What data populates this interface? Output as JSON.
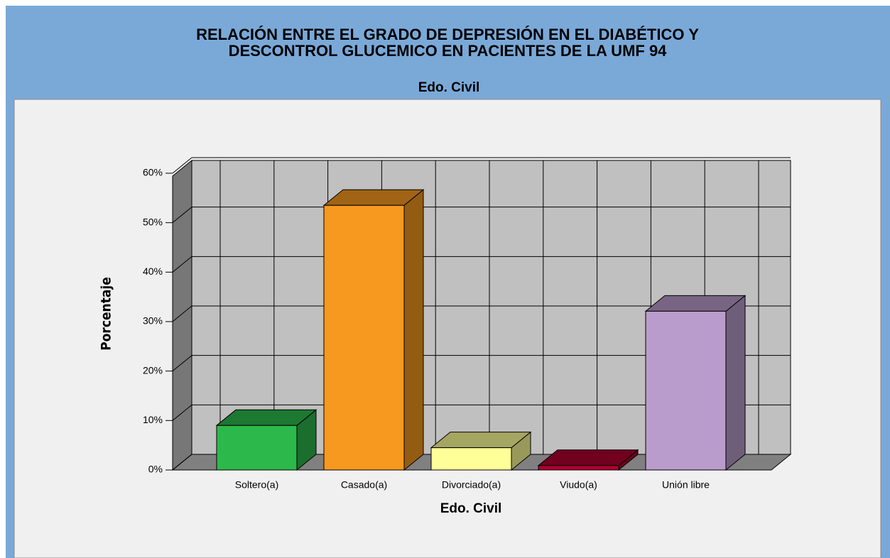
{
  "chart_data": {
    "type": "bar3d",
    "title": [
      "RELACIÓN ENTRE EL GRADO DE  DEPRESIÓN EN EL DIABÉTICO Y",
      "DESCONTROL GLUCEMICO EN PACIENTES DE LA UMF  94"
    ],
    "subtitle": "Edo. Civil",
    "x_label": "Edo. Civil",
    "y_label": "Porcentaje",
    "categories": [
      "Soltero(a)",
      "Casado(a)",
      "Divorciado(a)",
      "Viudo(a)",
      "Unión libre"
    ],
    "values": [
      9.0,
      53.5,
      4.5,
      0.9,
      32.1
    ],
    "colors": [
      "#2db84b",
      "#f7991e",
      "#ffff99",
      "#b00030",
      "#b99ccb"
    ],
    "ylim": [
      0,
      60
    ],
    "yticks": [
      {
        "value": 0,
        "label": "0%"
      },
      {
        "value": 10,
        "label": "10%"
      },
      {
        "value": 20,
        "label": "20%"
      },
      {
        "value": 30,
        "label": "30%"
      },
      {
        "value": 40,
        "label": "40%"
      },
      {
        "value": 50,
        "label": "50%"
      },
      {
        "value": 60,
        "label": "60%"
      }
    ],
    "grid": true
  }
}
